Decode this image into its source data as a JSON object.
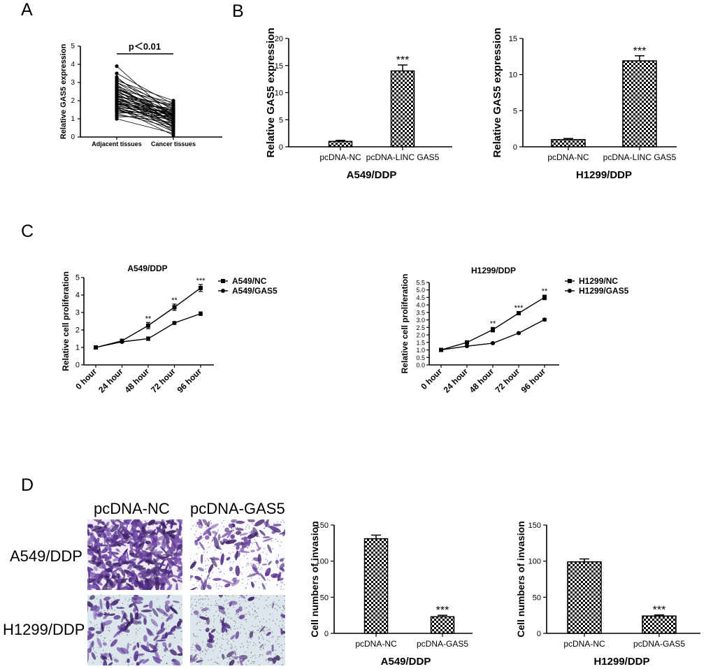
{
  "panels": {
    "A": "A",
    "B": "B",
    "C": "C",
    "D": "D"
  },
  "colors": {
    "ink": "#000000",
    "stain_purple": "#5b3a8e",
    "photo_bg_white": "#f7f5fa",
    "photo_bg_blue": "#dfe8ec"
  },
  "chart_data": [
    {
      "id": "A",
      "type": "scatter",
      "title": "",
      "annotation": "p＜0.01",
      "ylabel": "Relative GAS5 expression",
      "categories": [
        "Adjacent tissues",
        "Cancer tissues"
      ],
      "yticks": [
        0,
        1,
        2,
        3,
        4,
        5
      ],
      "ylim": [
        0,
        5
      ],
      "pairs": [
        [
          3.9,
          1.1
        ],
        [
          3.5,
          1.8
        ],
        [
          3.3,
          0.9
        ],
        [
          3.2,
          1.5
        ],
        [
          3.1,
          2.0
        ],
        [
          3.0,
          1.2
        ],
        [
          2.9,
          0.7
        ],
        [
          2.8,
          1.6
        ],
        [
          2.7,
          1.0
        ],
        [
          2.6,
          1.9
        ],
        [
          2.6,
          0.5
        ],
        [
          2.5,
          1.3
        ],
        [
          2.4,
          1.7
        ],
        [
          2.4,
          0.8
        ],
        [
          2.3,
          1.4
        ],
        [
          2.3,
          1.1
        ],
        [
          2.2,
          0.6
        ],
        [
          2.2,
          1.8
        ],
        [
          2.1,
          1.2
        ],
        [
          2.1,
          0.9
        ],
        [
          2.0,
          1.5
        ],
        [
          2.0,
          0.4
        ],
        [
          1.9,
          1.3
        ],
        [
          1.9,
          1.0
        ],
        [
          1.8,
          1.6
        ],
        [
          1.8,
          0.7
        ],
        [
          1.7,
          1.2
        ],
        [
          1.7,
          0.3
        ],
        [
          1.6,
          1.4
        ],
        [
          1.6,
          0.9
        ],
        [
          1.5,
          1.1
        ],
        [
          1.5,
          0.6
        ],
        [
          1.4,
          1.0
        ],
        [
          1.4,
          1.3
        ],
        [
          1.3,
          0.5
        ],
        [
          1.2,
          0.8
        ],
        [
          1.1,
          1.2
        ],
        [
          1.0,
          0.2
        ],
        [
          2.5,
          1.1
        ],
        [
          2.8,
          0.8
        ],
        [
          3.0,
          1.7
        ],
        [
          2.0,
          1.0
        ],
        [
          1.8,
          1.3
        ],
        [
          2.6,
          1.4
        ],
        [
          1.3,
          1.5
        ],
        [
          2.3,
          0.3
        ],
        [
          1.9,
          0.6
        ],
        [
          2.7,
          1.2
        ],
        [
          1.6,
          0.1
        ],
        [
          2.1,
          1.5
        ]
      ]
    },
    {
      "id": "B1",
      "type": "bar",
      "ylabel": "Relative GAS5 expression",
      "xlabel": "A549/DDP",
      "categories": [
        "pcDNA-NC",
        "pcDNA-LINC GAS5"
      ],
      "values": [
        1.0,
        14.0
      ],
      "errors": [
        0.2,
        1.1
      ],
      "significance": [
        "",
        "***"
      ],
      "yticks": [
        0,
        5,
        10,
        15,
        20
      ],
      "ylim": [
        0,
        20
      ]
    },
    {
      "id": "B2",
      "type": "bar",
      "ylabel": "Relative GAS5 expression",
      "xlabel": "H1299/DDP",
      "categories": [
        "pcDNA-NC",
        "pcDNA-LINC GAS5"
      ],
      "values": [
        1.0,
        11.9
      ],
      "errors": [
        0.15,
        0.7
      ],
      "significance": [
        "",
        "***"
      ],
      "yticks": [
        0,
        5,
        10,
        15
      ],
      "ylim": [
        0,
        15
      ]
    },
    {
      "id": "C1",
      "type": "line",
      "title": "A549/DDP",
      "ylabel": "Relative cell proliferation",
      "x": [
        "0 hour",
        "24 hour",
        "48 hour",
        "72 hour",
        "96 hour"
      ],
      "yticks": [
        "0",
        "1",
        "2",
        "3",
        "4",
        "5"
      ],
      "ylim": [
        0,
        5
      ],
      "series": [
        {
          "name": "A549/NC",
          "marker": "square",
          "values": [
            1.0,
            1.38,
            2.25,
            3.3,
            4.4
          ],
          "errors": [
            0.03,
            0.05,
            0.18,
            0.18,
            0.2
          ]
        },
        {
          "name": "A549/GAS5",
          "marker": "circle",
          "values": [
            1.0,
            1.32,
            1.5,
            2.4,
            2.93
          ],
          "errors": [
            0.03,
            0.05,
            0.1,
            0.08,
            0.1
          ]
        }
      ],
      "significance": [
        "",
        "",
        "**",
        "**",
        "***"
      ]
    },
    {
      "id": "C2",
      "type": "line",
      "title": "H1299/DDP",
      "ylabel": "Relative cell proliferation",
      "x": [
        "0 hour",
        "24 hour",
        "48 hour",
        "72 hour",
        "96 hour"
      ],
      "yticks": [
        "0.0",
        "0.5",
        "1.0",
        "1.5",
        "2.0",
        "2.5",
        "3.0",
        "3.5",
        "4.0",
        "4.5",
        "5.0",
        "5.5"
      ],
      "ylim": [
        0,
        5.5
      ],
      "series": [
        {
          "name": "H1299/NC",
          "marker": "square",
          "values": [
            1.0,
            1.5,
            2.35,
            3.45,
            4.5
          ],
          "errors": [
            0.03,
            0.05,
            0.15,
            0.1,
            0.15
          ]
        },
        {
          "name": "H1299/GAS5",
          "marker": "circle",
          "values": [
            1.0,
            1.25,
            1.45,
            2.12,
            3.02
          ],
          "errors": [
            0.03,
            0.04,
            0.05,
            0.05,
            0.08
          ]
        }
      ],
      "significance": [
        "",
        "",
        "**",
        "***",
        "**"
      ]
    },
    {
      "id": "D1",
      "type": "bar",
      "ylabel": "Cell numbers of invasion",
      "xlabel": "A549/DDP",
      "categories": [
        "pcDNA-NC",
        "pcDNA-GAS5"
      ],
      "values": [
        131,
        23
      ],
      "errors": [
        5,
        2
      ],
      "significance": [
        "",
        "***"
      ],
      "yticks": [
        0,
        50,
        100,
        150
      ],
      "ylim": [
        0,
        150
      ]
    },
    {
      "id": "D2",
      "type": "bar",
      "ylabel": "Cell numbers of invasion",
      "xlabel": "H1299/DDP",
      "categories": [
        "pcDNA-NC",
        "pcDNA-GAS5"
      ],
      "values": [
        99,
        24
      ],
      "errors": [
        4,
        1.5
      ],
      "significance": [
        "",
        "***"
      ],
      "yticks": [
        0,
        50,
        100,
        150
      ],
      "ylim": [
        0,
        150
      ]
    }
  ],
  "photo_grid": {
    "columns": [
      "pcDNA-NC",
      "pcDNA-GAS5"
    ],
    "rows": [
      "A549/DDP",
      "H1299/DDP"
    ]
  }
}
